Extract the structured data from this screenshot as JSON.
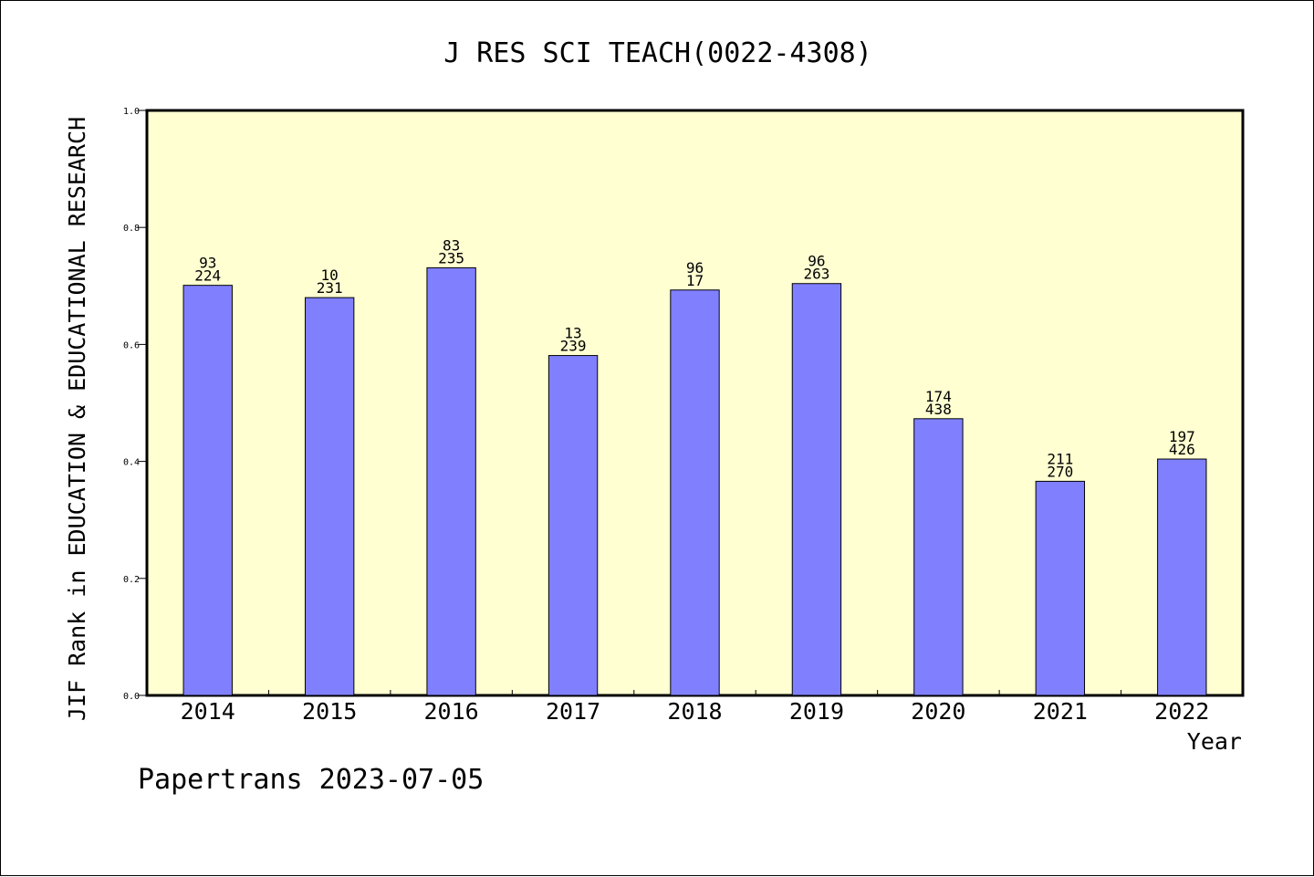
{
  "chart_data": {
    "type": "bar",
    "title": "J RES SCI TEACH(0022-4308)",
    "xlabel": "Year",
    "ylabel": "JIF Rank in EDUCATION & EDUCATIONAL RESEARCH",
    "footer": "Papertrans 2023-07-05",
    "ylim": [
      0,
      1.0
    ],
    "yticks": [
      "0.0",
      "0.2",
      "0.4",
      "0.6",
      "0.8",
      "1.0"
    ],
    "categories": [
      "2014",
      "2015",
      "2016",
      "2017",
      "2018",
      "2019",
      "2020",
      "2021",
      "2022"
    ],
    "values": [
      0.701,
      0.68,
      0.731,
      0.581,
      0.693,
      0.704,
      0.473,
      0.366,
      0.404
    ],
    "labels_top": [
      "93",
      "10",
      "83",
      "13",
      "96",
      "96",
      "174",
      "211",
      "197"
    ],
    "labels_bottom": [
      "224",
      "231",
      "235",
      "239",
      "17",
      "263",
      "438",
      "270",
      "426"
    ],
    "colors": {
      "plot_bg": "#FFFFD2",
      "bar": "#8080FF",
      "axis": "#000000"
    }
  }
}
